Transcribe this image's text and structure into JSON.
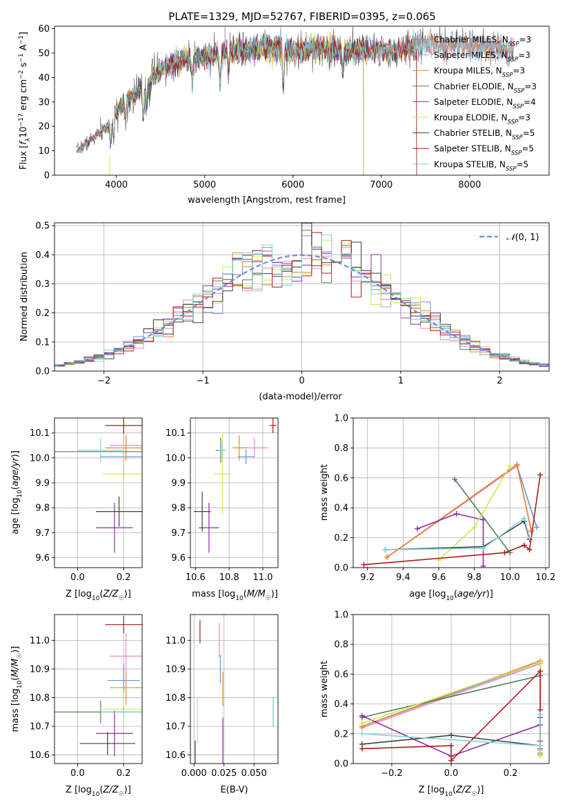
{
  "figure": {
    "title": "PLATE=1329, MJD=52767, FIBERID=0395, z=0.065"
  },
  "colors": {
    "Chabrier MILES": "#6a8fd6",
    "Salpeter MILES": "#e887c8",
    "Kroupa MILES": "#e8862a",
    "Chabrier ELODIE": "#4f7f57",
    "Salpeter ELODIE": "#8b2aa8",
    "Kroupa ELODIE": "#cfe84a",
    "Chabrier STELIB": "#3d3d3d",
    "Salpeter STELIB": "#b01818",
    "Kroupa STELIB": "#7fd6d6",
    "normal": "#6a8fd6"
  },
  "chart_data": [
    {
      "id": "spectrum",
      "type": "line",
      "xlabel": "wavelength [Angstrom, rest frame]",
      "ylabel": "Flux [f_λ10^-17 erg cm^-2 s^-1 A^-1]",
      "xlim": [
        3300,
        8900
      ],
      "ylim": [
        0,
        61
      ],
      "xticks": [
        4000,
        5000,
        6000,
        7000,
        8000
      ],
      "yticks": [
        0,
        10,
        20,
        30,
        40,
        50,
        60
      ],
      "grid": false,
      "legend_position": "right",
      "continuum": [
        [
          3550,
          10
        ],
        [
          3700,
          14
        ],
        [
          3900,
          20
        ],
        [
          4000,
          26
        ],
        [
          4100,
          31
        ],
        [
          4300,
          35
        ],
        [
          4500,
          43
        ],
        [
          4700,
          47
        ],
        [
          4900,
          48
        ],
        [
          5100,
          49
        ],
        [
          5400,
          51
        ],
        [
          5700,
          52
        ],
        [
          6000,
          51
        ],
        [
          6300,
          52
        ],
        [
          6600,
          51
        ],
        [
          6900,
          51
        ],
        [
          7100,
          51
        ],
        [
          7300,
          52
        ],
        [
          7500,
          54
        ],
        [
          7700,
          53
        ],
        [
          8000,
          53
        ],
        [
          8300,
          52
        ],
        [
          8500,
          51
        ]
      ],
      "series": [
        {
          "label": "Chabrier MILES, N",
          "sub": "SSP",
          "suffix": "=3",
          "key": "Chabrier MILES",
          "x_range": [
            3550,
            8500
          ]
        },
        {
          "label": "Salpeter MILES, N",
          "sub": "SSP",
          "suffix": "=3",
          "key": "Salpeter MILES",
          "x_range": [
            3550,
            8500
          ]
        },
        {
          "label": "Kroupa MILES, N",
          "sub": "SSP",
          "suffix": "=3",
          "key": "Kroupa MILES",
          "x_range": [
            3550,
            8500
          ]
        },
        {
          "label": "Chabrier ELODIE, N",
          "sub": "SSP",
          "suffix": "=3",
          "key": "Chabrier ELODIE",
          "x_range": [
            3900,
            6800
          ]
        },
        {
          "label": "Salpeter ELODIE, N",
          "sub": "SSP",
          "suffix": "=4",
          "key": "Salpeter ELODIE",
          "x_range": [
            3900,
            6800
          ]
        },
        {
          "label": "Kroupa ELODIE, N",
          "sub": "SSP",
          "suffix": "=3",
          "key": "Kroupa ELODIE",
          "x_range": [
            3900,
            6800
          ]
        },
        {
          "label": "Chabrier STELIB, N",
          "sub": "SSP",
          "suffix": "=5",
          "key": "Chabrier STELIB",
          "x_range": [
            3550,
            7400
          ]
        },
        {
          "label": "Salpeter STELIB, N",
          "sub": "SSP",
          "suffix": "=5",
          "key": "Salpeter STELIB",
          "x_range": [
            3550,
            7400
          ]
        },
        {
          "label": "Kroupa STELIB, N",
          "sub": "SSP",
          "suffix": "=5",
          "key": "Kroupa STELIB",
          "x_range": [
            3550,
            8500
          ]
        }
      ]
    },
    {
      "id": "residuals",
      "type": "line",
      "xlabel": "(data-model)/error",
      "ylabel": "Normed distribution",
      "xlim": [
        -2.5,
        2.5
      ],
      "ylim": [
        0,
        0.51
      ],
      "xticks": [
        -2,
        -1,
        0,
        1,
        2
      ],
      "yticks": [
        0.0,
        0.1,
        0.2,
        0.3,
        0.4,
        0.5
      ],
      "grid": true,
      "legend_position": "top-right",
      "normal_label": "N(0,1)",
      "bin_width": 0.1
    },
    {
      "id": "age-vs-Z",
      "type": "scatter",
      "xlabel": "Z [log10(Z/Z☉)]",
      "ylabel": "age [log10(age/yr)]",
      "xlim": [
        -0.1,
        0.28
      ],
      "ylim": [
        9.56,
        10.16
      ],
      "xticks": [
        0.0,
        0.2
      ],
      "yticks": [
        9.6,
        9.7,
        9.8,
        9.9,
        10.0,
        10.1
      ],
      "grid": true,
      "points": [
        {
          "key": "Chabrier MILES",
          "x": 0.2,
          "y": 10.005,
          "xerr": 0.1,
          "yerr": 0.03
        },
        {
          "key": "Salpeter MILES",
          "x": 0.21,
          "y": 10.05,
          "xerr": 0.07,
          "yerr": 0.04
        },
        {
          "key": "Kroupa MILES",
          "x": 0.21,
          "y": 10.04,
          "xerr": 0.09,
          "yerr": 0.05
        },
        {
          "key": "Chabrier ELODIE",
          "x": 0.2,
          "y": 10.025,
          "xerr": 0.3,
          "yerr": 0.1
        },
        {
          "key": "Salpeter ELODIE",
          "x": 0.16,
          "y": 9.72,
          "xerr": 0.08,
          "yerr": 0.1
        },
        {
          "key": "Kroupa ELODIE",
          "x": 0.2,
          "y": 9.935,
          "xerr": 0.09,
          "yerr": 0.16
        },
        {
          "key": "Chabrier STELIB",
          "x": 0.18,
          "y": 9.785,
          "xerr": 0.1,
          "yerr": 0.06
        },
        {
          "key": "Salpeter STELIB",
          "x": 0.2,
          "y": 10.13,
          "xerr": 0.08,
          "yerr": 0.03
        },
        {
          "key": "Kroupa STELIB",
          "x": 0.1,
          "y": 10.03,
          "xerr": 0.1,
          "yerr": 0.05
        }
      ]
    },
    {
      "id": "age-vs-mass",
      "type": "scatter",
      "xlabel": "mass [log10(M/M☉)]",
      "ylabel": "",
      "xlim": [
        10.57,
        11.09
      ],
      "ylim": [
        9.56,
        10.16
      ],
      "xticks": [
        10.6,
        10.8,
        11.0
      ],
      "yticks": [
        9.6,
        9.7,
        9.8,
        9.9,
        10.0,
        10.1
      ],
      "grid": true,
      "points": [
        {
          "key": "Chabrier MILES",
          "x": 10.9,
          "y": 10.005,
          "xerr": 0.05,
          "yerr": 0.03
        },
        {
          "key": "Salpeter MILES",
          "x": 10.95,
          "y": 10.04,
          "xerr": 0.08,
          "yerr": 0.04
        },
        {
          "key": "Kroupa MILES",
          "x": 10.86,
          "y": 10.04,
          "xerr": 0.04,
          "yerr": 0.05
        },
        {
          "key": "Chabrier ELODIE",
          "x": 10.75,
          "y": 10.03,
          "xerr": 0.03,
          "yerr": 0.05
        },
        {
          "key": "Salpeter ELODIE",
          "x": 10.68,
          "y": 9.72,
          "xerr": 0.06,
          "yerr": 0.1
        },
        {
          "key": "Kroupa ELODIE",
          "x": 10.76,
          "y": 9.935,
          "xerr": 0.05,
          "yerr": 0.16
        },
        {
          "key": "Chabrier STELIB",
          "x": 10.64,
          "y": 9.785,
          "xerr": 0.05,
          "yerr": 0.08
        },
        {
          "key": "Salpeter STELIB",
          "x": 11.06,
          "y": 10.13,
          "xerr": 0.02,
          "yerr": 0.03
        },
        {
          "key": "Kroupa STELIB",
          "x": 10.76,
          "y": 10.03,
          "xerr": 0.02,
          "yerr": 0.03
        }
      ]
    },
    {
      "id": "mass-weight-vs-age",
      "type": "line",
      "xlabel": "age [log10(age/yr)]",
      "ylabel": "mass weight",
      "xlim": [
        9.12,
        10.22
      ],
      "ylim": [
        0,
        1.0
      ],
      "xticks": [
        9.2,
        9.4,
        9.6,
        9.8,
        10.0,
        10.2
      ],
      "yticks": [
        0.0,
        0.2,
        0.4,
        0.6,
        0.8,
        1.0
      ],
      "grid": true,
      "series": [
        {
          "key": "Chabrier MILES",
          "x": [
            9.31,
            10.04,
            10.15
          ],
          "y": [
            0.07,
            0.68,
            0.27
          ]
        },
        {
          "key": "Salpeter MILES",
          "x": [
            9.31,
            10.04,
            10.12
          ],
          "y": [
            0.07,
            0.68,
            0.25
          ]
        },
        {
          "key": "Kroupa MILES",
          "x": [
            9.31,
            10.04,
            10.12
          ],
          "y": [
            0.07,
            0.69,
            0.24
          ]
        },
        {
          "key": "Chabrier ELODIE",
          "x": [
            9.69,
            10.0
          ],
          "y": [
            0.59,
            0.1
          ]
        },
        {
          "key": "Salpeter ELODIE",
          "x": [
            9.48,
            9.7,
            9.85,
            9.85
          ],
          "y": [
            0.26,
            0.36,
            0.32,
            0.01
          ]
        },
        {
          "key": "Kroupa ELODIE",
          "x": [
            9.6,
            9.8,
            10.0
          ],
          "y": [
            0.05,
            0.27,
            0.68
          ]
        },
        {
          "key": "Chabrier STELIB",
          "x": [
            9.3,
            9.85,
            10.08,
            10.11
          ],
          "y": [
            0.12,
            0.14,
            0.31,
            0.19
          ]
        },
        {
          "key": "Salpeter STELIB",
          "x": [
            9.18,
            9.97,
            10.08,
            10.11,
            10.17
          ],
          "y": [
            0.02,
            0.1,
            0.15,
            0.12,
            0.62
          ]
        },
        {
          "key": "Kroupa STELIB",
          "x": [
            9.3,
            9.85,
            10.08,
            10.11
          ],
          "y": [
            0.12,
            0.13,
            0.33,
            0.2
          ]
        }
      ]
    },
    {
      "id": "mass-vs-Z",
      "type": "scatter",
      "xlabel": "Z [log10(Z/Z☉)]",
      "ylabel": "mass [log10(M/M☉)]",
      "xlim": [
        -0.1,
        0.28
      ],
      "ylim": [
        10.57,
        11.09
      ],
      "xticks": [
        0.0,
        0.2
      ],
      "yticks": [
        10.6,
        10.7,
        10.8,
        10.9,
        11.0
      ],
      "grid": true,
      "points": [
        {
          "key": "Chabrier MILES",
          "x": 0.2,
          "y": 10.86,
          "xerr": 0.07,
          "yerr": 0.06
        },
        {
          "key": "Salpeter MILES",
          "x": 0.21,
          "y": 10.945,
          "xerr": 0.07,
          "yerr": 0.08
        },
        {
          "key": "Kroupa MILES",
          "x": 0.21,
          "y": 10.835,
          "xerr": 0.07,
          "yerr": 0.06
        },
        {
          "key": "Chabrier ELODIE",
          "x": 0.1,
          "y": 10.75,
          "xerr": 0.3,
          "yerr": 0.04
        },
        {
          "key": "Salpeter ELODIE",
          "x": 0.16,
          "y": 10.675,
          "xerr": 0.08,
          "yerr": 0.08
        },
        {
          "key": "Kroupa ELODIE",
          "x": 0.2,
          "y": 10.76,
          "xerr": 0.09,
          "yerr": 0.06
        },
        {
          "key": "Chabrier STELIB",
          "x": 0.13,
          "y": 10.64,
          "xerr": 0.12,
          "yerr": 0.04
        },
        {
          "key": "Salpeter STELIB",
          "x": 0.2,
          "y": 11.055,
          "xerr": 0.08,
          "yerr": 0.03
        },
        {
          "key": "Kroupa STELIB",
          "x": 0.2,
          "y": 10.75,
          "xerr": 0.1,
          "yerr": 0.02
        }
      ]
    },
    {
      "id": "mass-vs-ebv",
      "type": "scatter",
      "xlabel": "E(B-V)",
      "ylabel": "",
      "xlim": [
        -0.003,
        0.07
      ],
      "ylim": [
        10.57,
        11.09
      ],
      "xticks": [
        0.0,
        0.025,
        0.05
      ],
      "xticklabels": [
        "0.000",
        "0.025",
        "0.050"
      ],
      "yticks": [
        10.6,
        10.7,
        10.8,
        10.9,
        11.0
      ],
      "grid": true,
      "points": [
        {
          "key": "Chabrier MILES",
          "x": 0.022,
          "y": 10.9,
          "xerr": 0.0,
          "yerr": 0.05
        },
        {
          "key": "Salpeter MILES",
          "x": 0.021,
          "y": 11.0,
          "xerr": 0.0,
          "yerr": 0.06
        },
        {
          "key": "Kroupa MILES",
          "x": 0.024,
          "y": 10.83,
          "xerr": 0.0,
          "yerr": 0.06
        },
        {
          "key": "Chabrier ELODIE",
          "x": 0.066,
          "y": 10.75,
          "xerr": 0.0,
          "yerr": 0.05
        },
        {
          "key": "Salpeter ELODIE",
          "x": 0.024,
          "y": 10.65,
          "xerr": 0.0,
          "yerr": 0.08
        },
        {
          "key": "Kroupa ELODIE",
          "x": 0.003,
          "y": 10.72,
          "xerr": 0.0,
          "yerr": 0.08
        },
        {
          "key": "Chabrier STELIB",
          "x": 0.001,
          "y": 10.61,
          "xerr": 0.0,
          "yerr": 0.04
        },
        {
          "key": "Salpeter STELIB",
          "x": 0.005,
          "y": 11.03,
          "xerr": 0.0,
          "yerr": 0.04
        },
        {
          "key": "Kroupa STELIB",
          "x": 0.066,
          "y": 10.75,
          "xerr": 0.0,
          "yerr": 0.05
        }
      ]
    },
    {
      "id": "mass-weight-vs-Z",
      "type": "line",
      "xlabel": "Z [log10(Z/Z☉)]",
      "ylabel": "mass weight",
      "xlim": [
        -0.33,
        0.33
      ],
      "ylim": [
        0,
        1.0
      ],
      "xticks": [
        -0.2,
        0.0,
        0.2
      ],
      "yticks": [
        0.0,
        0.2,
        0.4,
        0.6,
        0.8,
        1.0
      ],
      "grid": true,
      "series": [
        {
          "key": "Chabrier MILES",
          "x": [
            -0.3,
            0.3,
            0.3
          ],
          "y": [
            0.25,
            0.68,
            0.07
          ]
        },
        {
          "key": "Salpeter MILES",
          "x": [
            -0.3,
            0.3,
            0.3
          ],
          "y": [
            0.24,
            0.67,
            0.09
          ]
        },
        {
          "key": "Kroupa MILES",
          "x": [
            -0.3,
            0.3,
            0.3
          ],
          "y": [
            0.25,
            0.69,
            0.06
          ]
        },
        {
          "key": "Chabrier ELODIE",
          "x": [
            -0.3,
            0.3,
            0.3
          ],
          "y": [
            0.31,
            0.59,
            0.1
          ]
        },
        {
          "key": "Salpeter ELODIE",
          "x": [
            -0.3,
            0.0,
            0.3,
            0.3
          ],
          "y": [
            0.32,
            0.05,
            0.26,
            0.36
          ]
        },
        {
          "key": "Kroupa ELODIE",
          "x": [
            -0.3,
            0.3,
            0.3
          ],
          "y": [
            0.27,
            0.68,
            0.05
          ]
        },
        {
          "key": "Chabrier STELIB",
          "x": [
            -0.3,
            0.0,
            0.3,
            0.3
          ],
          "y": [
            0.13,
            0.19,
            0.12,
            0.31
          ]
        },
        {
          "key": "Salpeter STELIB",
          "x": [
            -0.3,
            0.0,
            0.0,
            0.3,
            0.3
          ],
          "y": [
            0.1,
            0.12,
            0.02,
            0.62,
            0.15
          ]
        },
        {
          "key": "Kroupa STELIB",
          "x": [
            -0.3,
            0.3,
            0.3
          ],
          "y": [
            0.2,
            0.12,
            0.33
          ]
        }
      ]
    }
  ]
}
